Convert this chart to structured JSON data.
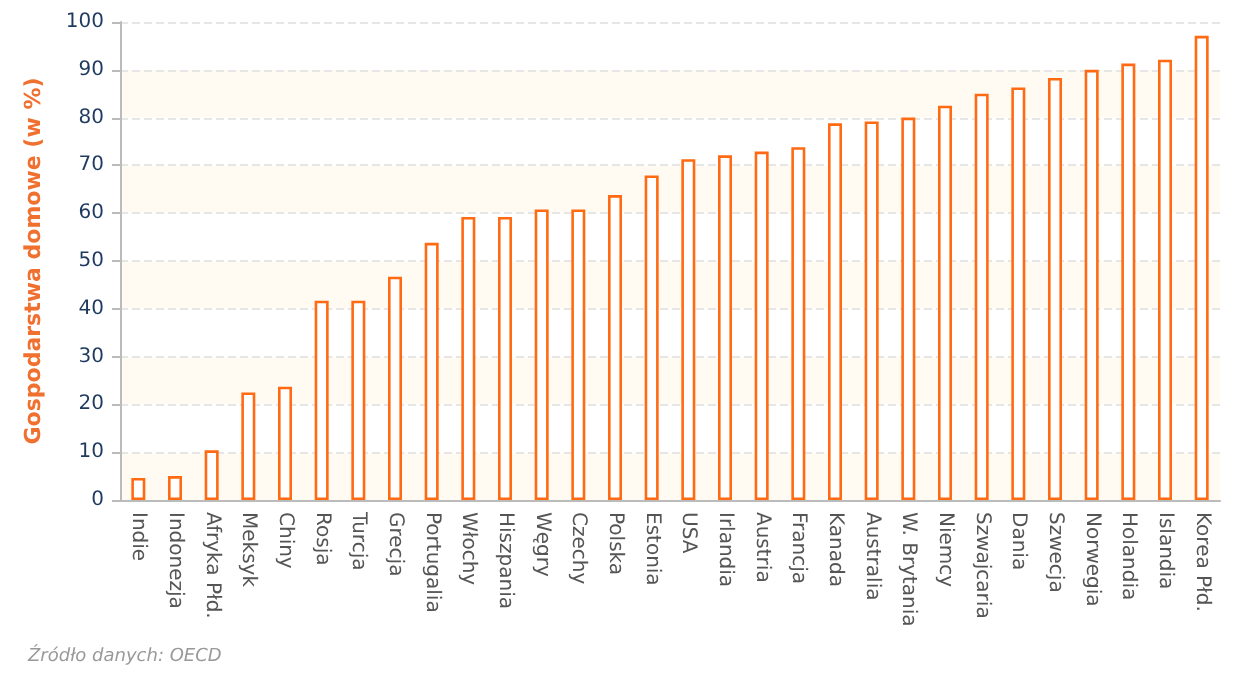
{
  "chart_data": {
    "type": "bar",
    "ylabel": "Gospodarstwa domowe (w %)",
    "categories": [
      "Indie",
      "Indonezja",
      "Afryka Płd.",
      "Meksyk",
      "Chiny",
      "Rosja",
      "Turcja",
      "Grecja",
      "Portugalia",
      "Włochy",
      "Hiszpania",
      "Węgry",
      "Czechy",
      "Polska",
      "Estonia",
      "USA",
      "Irlandia",
      "Austria",
      "Francja",
      "Kanada",
      "Australia",
      "W. Brytania",
      "Niemcy",
      "Szwajcaria",
      "Dania",
      "Szwecja",
      "Norwegia",
      "Holandia",
      "Islandia",
      "Korea Płd."
    ],
    "values": [
      4.6,
      5.0,
      10.4,
      22.5,
      23.7,
      41.7,
      41.7,
      46.7,
      53.8,
      59.2,
      59.2,
      60.8,
      60.8,
      63.8,
      67.9,
      71.3,
      72.1,
      72.9,
      73.8,
      78.8,
      79.2,
      80.0,
      82.5,
      85.0,
      86.3,
      88.3,
      90.0,
      91.3,
      92.1,
      97.1
    ],
    "color": "#ff6a13",
    "ylim": [
      0,
      100
    ],
    "yticks": [
      0,
      10,
      20,
      30,
      40,
      50,
      60,
      70,
      80,
      90,
      100
    ],
    "grid": "y",
    "annotations": [
      "Źródło danych: OECD"
    ]
  }
}
